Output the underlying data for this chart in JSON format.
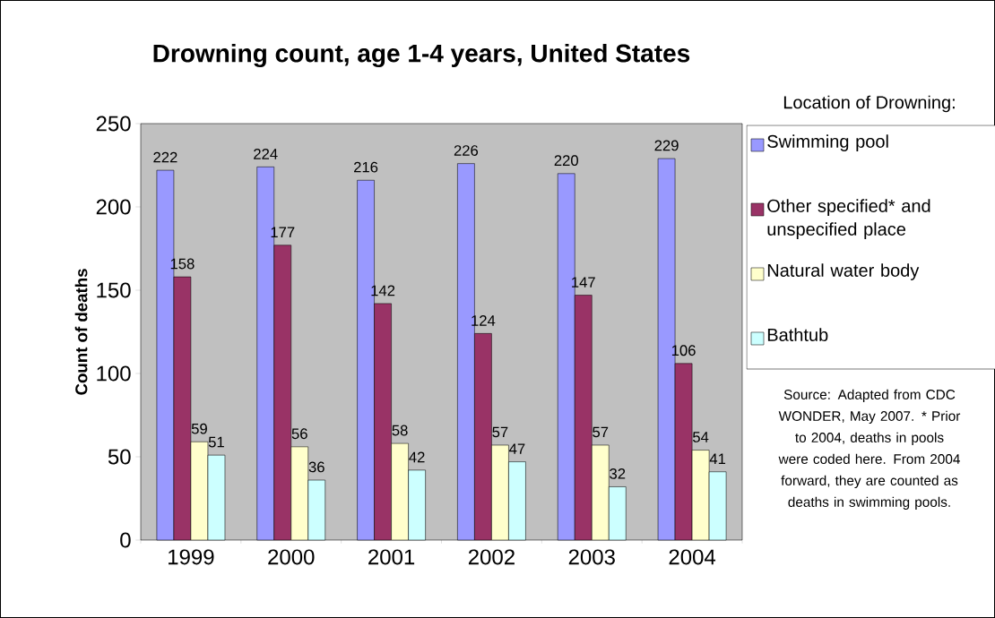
{
  "chart_data": {
    "type": "bar",
    "title": "Drowning count, age 1-4 years, United States",
    "ylabel": "Count of deaths",
    "legend_title": "Location of Drowning:",
    "categories": [
      "1999",
      "2000",
      "2001",
      "2002",
      "2003",
      "2004"
    ],
    "series": [
      {
        "name": "Swimming pool",
        "color": "#9999ff",
        "values": [
          222,
          224,
          216,
          226,
          220,
          229
        ]
      },
      {
        "name": "Other specified* and unspecified place",
        "color": "#993366",
        "values": [
          158,
          177,
          142,
          124,
          147,
          106
        ]
      },
      {
        "name": "Natural water body",
        "color": "#ffffcc",
        "values": [
          59,
          56,
          58,
          57,
          57,
          54
        ]
      },
      {
        "name": "Bathtub",
        "color": "#ccffff",
        "values": [
          51,
          36,
          42,
          47,
          32,
          41
        ]
      }
    ],
    "ylim": [
      0,
      250
    ],
    "yticks": [
      0,
      50,
      100,
      150,
      200,
      250
    ],
    "grid": false,
    "legend": "right",
    "data_labels": true,
    "annotations": [
      "Source: Adapted from CDC WONDER, May 2007. * Prior to 2004, deaths in pools were coded here. From 2004 forward, they are counted as deaths in swimming pools."
    ]
  }
}
